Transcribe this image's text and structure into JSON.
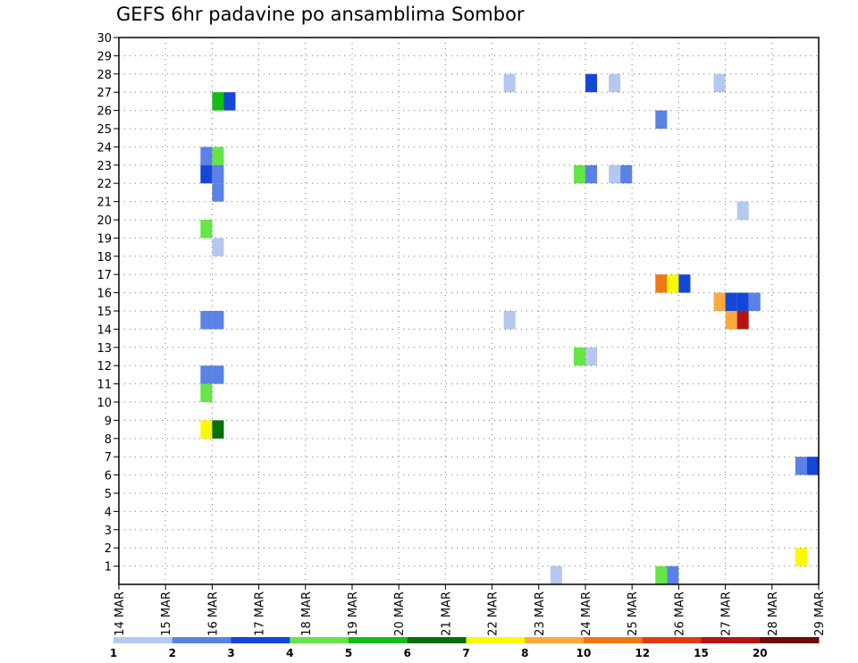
{
  "chart_data": {
    "type": "heatmap",
    "title": "GEFS 6hr padavine po ansamblima Sombor",
    "x_tick_labels": [
      "14 MAR",
      "15 MAR",
      "16 MAR",
      "17 MAR",
      "18 MAR",
      "19 MAR",
      "20 MAR",
      "21 MAR",
      "22 MAR",
      "23 MAR",
      "24 MAR",
      "25 MAR",
      "26 MAR",
      "27 MAR",
      "28 MAR",
      "29 MAR"
    ],
    "y_tick_labels": [
      "1",
      "2",
      "3",
      "4",
      "5",
      "6",
      "7",
      "8",
      "9",
      "10",
      "11",
      "12",
      "13",
      "14",
      "15",
      "16",
      "17",
      "18",
      "19",
      "20",
      "21",
      "22",
      "23",
      "24",
      "25",
      "26",
      "27",
      "28",
      "29",
      "30"
    ],
    "xlim": [
      0,
      60
    ],
    "ylim": [
      0,
      30
    ],
    "grid": true,
    "colorbar": {
      "levels": [
        "1",
        "2",
        "3",
        "4",
        "5",
        "6",
        "7",
        "8",
        "10",
        "12",
        "15",
        "20"
      ],
      "colors": [
        "#b4c8f0",
        "#5a82e6",
        "#1446d8",
        "#64e646",
        "#14be14",
        "#0a6e0a",
        "#fafa00",
        "#faaa3c",
        "#f07814",
        "#e03c14",
        "#b41414",
        "#6e0a0a"
      ]
    },
    "cells": [
      {
        "t": 9,
        "m": 27,
        "v": 5.5
      },
      {
        "t": 10,
        "m": 27,
        "v": 3.5
      },
      {
        "t": 8,
        "m": 24,
        "v": 2.5
      },
      {
        "t": 9,
        "m": 24,
        "v": 4.5
      },
      {
        "t": 8,
        "m": 23,
        "v": 3.5
      },
      {
        "t": 9,
        "m": 23,
        "v": 2.5
      },
      {
        "t": 9,
        "m": 22,
        "v": 2.5
      },
      {
        "t": 8,
        "m": 20,
        "v": 4.5
      },
      {
        "t": 9,
        "m": 19,
        "v": 1.5
      },
      {
        "t": 8,
        "m": 15,
        "v": 2.5
      },
      {
        "t": 9,
        "m": 15,
        "v": 2.5
      },
      {
        "t": 8,
        "m": 12,
        "v": 2.5
      },
      {
        "t": 9,
        "m": 12,
        "v": 2.5
      },
      {
        "t": 8,
        "m": 11,
        "v": 4.5
      },
      {
        "t": 8,
        "m": 9,
        "v": 7.5
      },
      {
        "t": 9,
        "m": 9,
        "v": 6.5
      },
      {
        "t": 34,
        "m": 28,
        "v": 1.5
      },
      {
        "t": 34,
        "m": 15,
        "v": 1.5
      },
      {
        "t": 41,
        "m": 28,
        "v": 3.5
      },
      {
        "t": 43,
        "m": 28,
        "v": 1.5
      },
      {
        "t": 40,
        "m": 23,
        "v": 4.5
      },
      {
        "t": 41,
        "m": 23,
        "v": 2.5
      },
      {
        "t": 43,
        "m": 23,
        "v": 1.5
      },
      {
        "t": 44,
        "m": 23,
        "v": 2.5
      },
      {
        "t": 40,
        "m": 13,
        "v": 4.5
      },
      {
        "t": 41,
        "m": 13,
        "v": 1.5
      },
      {
        "t": 38,
        "m": 1,
        "v": 1.5
      },
      {
        "t": 47,
        "m": 26,
        "v": 2.5
      },
      {
        "t": 52,
        "m": 28,
        "v": 1.5
      },
      {
        "t": 54,
        "m": 21,
        "v": 1.5
      },
      {
        "t": 47,
        "m": 17,
        "v": 11
      },
      {
        "t": 48,
        "m": 17,
        "v": 7.5
      },
      {
        "t": 49,
        "m": 17,
        "v": 3.5
      },
      {
        "t": 52,
        "m": 16,
        "v": 9
      },
      {
        "t": 53,
        "m": 16,
        "v": 3.5
      },
      {
        "t": 54,
        "m": 16,
        "v": 3.5
      },
      {
        "t": 55,
        "m": 16,
        "v": 2.5
      },
      {
        "t": 53,
        "m": 15,
        "v": 9
      },
      {
        "t": 54,
        "m": 15,
        "v": 16
      },
      {
        "t": 47,
        "m": 1,
        "v": 4.5
      },
      {
        "t": 48,
        "m": 1,
        "v": 2.5
      },
      {
        "t": 59,
        "m": 7,
        "v": 2.5
      },
      {
        "t": 59,
        "m": 2,
        "v": 7.5
      },
      {
        "t": 60,
        "m": 7,
        "v": 3.5
      }
    ]
  }
}
